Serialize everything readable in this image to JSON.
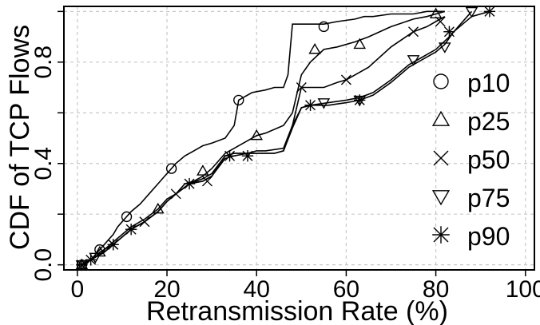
{
  "chart_data": {
    "type": "line",
    "title": "",
    "xlabel": "Retransmission Rate (%)",
    "ylabel": "CDF of TCP Flows",
    "xlim": [
      -3,
      102
    ],
    "ylim": [
      -0.02,
      1.02
    ],
    "x_ticks": [
      0,
      20,
      40,
      60,
      80,
      100
    ],
    "x_tick_labels": [
      "0",
      "20",
      "40",
      "60",
      "80",
      "100"
    ],
    "y_ticks": [
      0.0,
      0.2,
      0.4,
      0.6,
      0.8,
      1.0
    ],
    "y_tick_labels": [
      "0.0",
      "",
      "0.4",
      "",
      "0.8",
      ""
    ],
    "grid": true,
    "legend_position": "right",
    "series": [
      {
        "name": "p10",
        "marker": "circle",
        "x": [
          1,
          2,
          3,
          4,
          5,
          6,
          7,
          8,
          9,
          10,
          11,
          12,
          14,
          16,
          18,
          20,
          21,
          22,
          24,
          26,
          28,
          30,
          33,
          35,
          36,
          37,
          39,
          42,
          44,
          46,
          47,
          48,
          50,
          55,
          58,
          62,
          64,
          66,
          70,
          75,
          78,
          82
        ],
        "y": [
          0.0,
          0.01,
          0.02,
          0.04,
          0.06,
          0.08,
          0.1,
          0.12,
          0.15,
          0.17,
          0.19,
          0.21,
          0.24,
          0.28,
          0.32,
          0.36,
          0.38,
          0.4,
          0.43,
          0.45,
          0.47,
          0.48,
          0.5,
          0.55,
          0.65,
          0.66,
          0.68,
          0.69,
          0.7,
          0.7,
          0.75,
          0.95,
          0.95,
          0.95,
          0.96,
          0.97,
          0.98,
          0.98,
          0.99,
          0.99,
          1.0,
          1.0
        ],
        "marker_x": [
          1,
          5,
          11,
          21,
          36,
          55
        ],
        "marker_y": [
          0.0,
          0.06,
          0.19,
          0.38,
          0.65,
          0.94
        ]
      },
      {
        "name": "p25",
        "marker": "triangle-up",
        "x": [
          1,
          2,
          3,
          4,
          5,
          6,
          8,
          10,
          12,
          15,
          18,
          20,
          22,
          24,
          26,
          28,
          30,
          33,
          35,
          38,
          40,
          42,
          46,
          48,
          50,
          52,
          55,
          58,
          62,
          65,
          70,
          75,
          78,
          80,
          82
        ],
        "y": [
          0.0,
          0.01,
          0.02,
          0.03,
          0.05,
          0.06,
          0.09,
          0.12,
          0.15,
          0.18,
          0.22,
          0.26,
          0.28,
          0.32,
          0.33,
          0.35,
          0.38,
          0.44,
          0.46,
          0.49,
          0.51,
          0.52,
          0.55,
          0.6,
          0.75,
          0.8,
          0.85,
          0.86,
          0.88,
          0.9,
          0.94,
          0.97,
          0.98,
          0.99,
          1.0
        ],
        "marker_x": [
          1,
          5,
          18,
          28,
          40,
          53,
          63,
          80
        ],
        "marker_y": [
          0.0,
          0.05,
          0.22,
          0.37,
          0.51,
          0.85,
          0.87,
          0.99
        ]
      },
      {
        "name": "p50",
        "marker": "x",
        "x": [
          1,
          2,
          3,
          4,
          5,
          6,
          8,
          10,
          12,
          15,
          18,
          20,
          22,
          25,
          28,
          30,
          33,
          35,
          38,
          40,
          42,
          46,
          48,
          50,
          52,
          55,
          58,
          60,
          62,
          65,
          70,
          75,
          78,
          80,
          82
        ],
        "y": [
          0.0,
          0.01,
          0.02,
          0.03,
          0.04,
          0.06,
          0.08,
          0.11,
          0.14,
          0.17,
          0.21,
          0.25,
          0.28,
          0.32,
          0.34,
          0.36,
          0.43,
          0.44,
          0.44,
          0.45,
          0.45,
          0.46,
          0.55,
          0.7,
          0.7,
          0.7,
          0.72,
          0.73,
          0.75,
          0.78,
          0.86,
          0.92,
          0.94,
          0.96,
          0.98
        ],
        "marker_x": [
          1,
          8,
          15,
          22,
          29,
          50,
          60,
          75,
          81
        ],
        "marker_y": [
          0.0,
          0.08,
          0.17,
          0.28,
          0.33,
          0.7,
          0.73,
          0.92,
          0.96
        ]
      },
      {
        "name": "p75",
        "marker": "triangle-down",
        "x": [
          1,
          2,
          3,
          4,
          5,
          6,
          8,
          10,
          12,
          15,
          18,
          20,
          22,
          25,
          28,
          30,
          33,
          35,
          38,
          40,
          42,
          44,
          46,
          48,
          50,
          52,
          56,
          60,
          63,
          66,
          70,
          74,
          77,
          80,
          83,
          88
        ],
        "y": [
          0.0,
          0.01,
          0.02,
          0.03,
          0.04,
          0.05,
          0.08,
          0.11,
          0.14,
          0.17,
          0.21,
          0.25,
          0.28,
          0.32,
          0.33,
          0.35,
          0.43,
          0.44,
          0.44,
          0.44,
          0.44,
          0.44,
          0.45,
          0.55,
          0.62,
          0.63,
          0.64,
          0.65,
          0.66,
          0.68,
          0.73,
          0.79,
          0.82,
          0.85,
          0.9,
          1.0
        ],
        "marker_x": [
          1,
          4,
          55,
          63,
          75,
          82,
          88
        ],
        "marker_y": [
          0.0,
          0.03,
          0.64,
          0.65,
          0.81,
          0.86,
          1.0
        ]
      },
      {
        "name": "p90",
        "marker": "asterisk",
        "x": [
          1,
          2,
          3,
          4,
          5,
          6,
          8,
          10,
          12,
          15,
          18,
          20,
          22,
          25,
          28,
          30,
          33,
          35,
          38,
          40,
          42,
          44,
          46,
          48,
          50,
          52,
          56,
          60,
          63,
          66,
          70,
          74,
          77,
          80,
          82,
          84,
          86,
          88,
          92
        ],
        "y": [
          0.0,
          0.01,
          0.02,
          0.03,
          0.04,
          0.05,
          0.08,
          0.11,
          0.14,
          0.17,
          0.21,
          0.25,
          0.28,
          0.32,
          0.33,
          0.35,
          0.42,
          0.43,
          0.44,
          0.44,
          0.44,
          0.44,
          0.45,
          0.54,
          0.62,
          0.63,
          0.63,
          0.64,
          0.65,
          0.67,
          0.72,
          0.78,
          0.81,
          0.84,
          0.87,
          0.92,
          0.95,
          0.98,
          1.0
        ],
        "marker_x": [
          1,
          3,
          8,
          12,
          25,
          34,
          38,
          52,
          63,
          83,
          92
        ],
        "marker_y": [
          0.0,
          0.02,
          0.08,
          0.14,
          0.32,
          0.43,
          0.43,
          0.63,
          0.65,
          0.92,
          1.0
        ]
      }
    ]
  }
}
